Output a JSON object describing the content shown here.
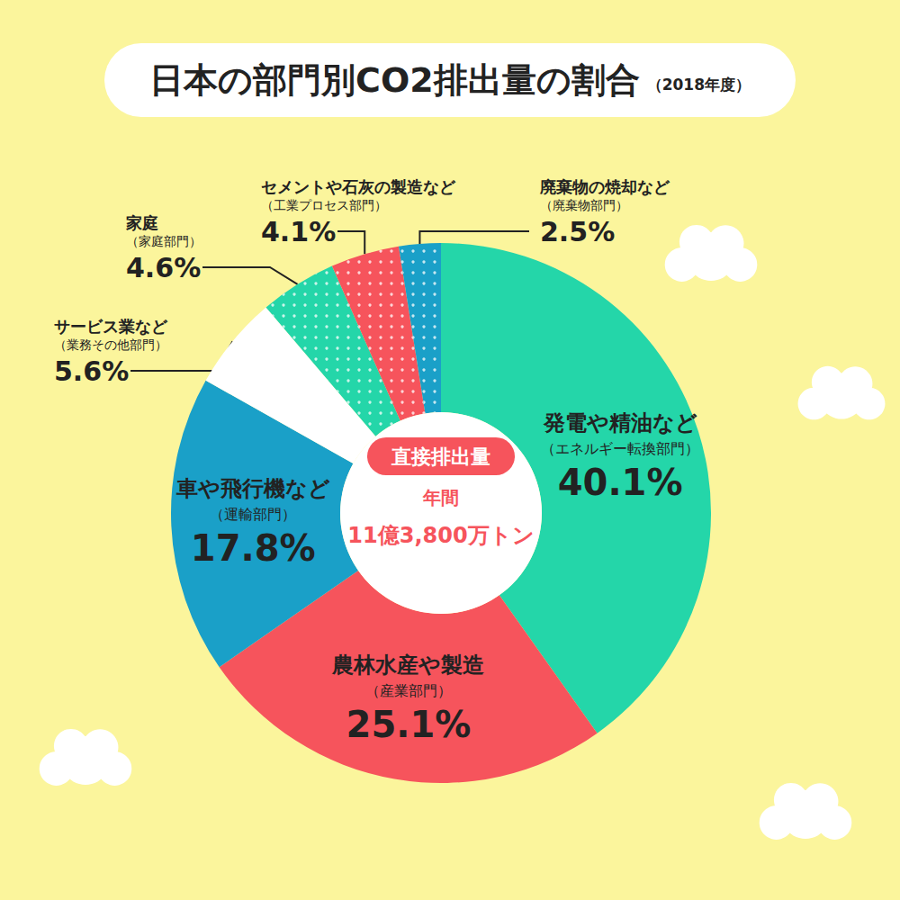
{
  "chart_data": {
    "type": "pie",
    "title": "日本の部門別CO2排出量の割合",
    "subtitle": "（2018年度）",
    "center_label": {
      "badge": "直接排出量",
      "period": "年間",
      "total": "11億3,800万トン"
    },
    "categories": [
      "発電や精油など",
      "農林水産や製造",
      "車や飛行機など",
      "サービス業など",
      "家庭",
      "セメントや石灰の製造など",
      "廃棄物の焼却など"
    ],
    "sublabels": [
      "（エネルギー転換部門）",
      "（産業部門）",
      "（運輸部門）",
      "（業務その他部門）",
      "（家庭部門）",
      "（工業プロセス部門）",
      "（廃棄物部門）"
    ],
    "values": [
      40.1,
      25.1,
      17.8,
      5.6,
      4.6,
      4.1,
      2.5
    ],
    "value_labels": [
      "40.1%",
      "25.1%",
      "17.8%",
      "5.6%",
      "4.6%",
      "4.1%",
      "2.5%"
    ],
    "colors": [
      "#24d6a9",
      "#f6545c",
      "#1aa0c8",
      "#ffffff",
      "#24d6a9",
      "#f6545c",
      "#1aa0c8"
    ],
    "data_labels": true
  }
}
